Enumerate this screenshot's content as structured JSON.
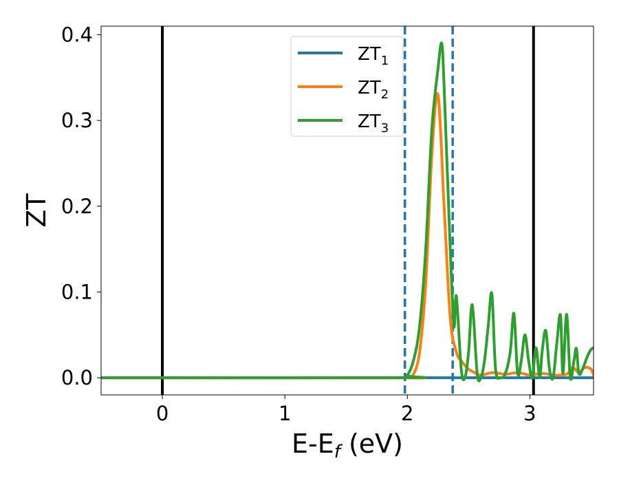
{
  "chart_data": {
    "type": "line",
    "xlabel": "E-E",
    "xlabel_sub": "f",
    "xlabel_unit": "(eV)",
    "ylabel": "ZT",
    "xlim": [
      -0.5,
      3.52
    ],
    "ylim": [
      -0.02,
      0.41
    ],
    "x_ticks": [
      0,
      1,
      2,
      3
    ],
    "x_tick_labels": [
      "0",
      "1",
      "2",
      "3"
    ],
    "y_ticks": [
      0.0,
      0.1,
      0.2,
      0.3,
      0.4
    ],
    "y_tick_labels": [
      "0.0",
      "0.1",
      "0.2",
      "0.3",
      "0.4"
    ],
    "grid": false,
    "legend_position": "top-center",
    "vlines": [
      {
        "x": 0.0,
        "style": "solid",
        "color": "#000000"
      },
      {
        "x": 1.98,
        "style": "dashed",
        "color": "#1f77b4"
      },
      {
        "x": 2.37,
        "style": "dashed",
        "color": "#1f77b4"
      },
      {
        "x": 3.03,
        "style": "solid",
        "color": "#000000"
      }
    ],
    "series": [
      {
        "name": "ZT",
        "sub": "1",
        "color": "#1f77b4",
        "x": [
          -0.5,
          3.52
        ],
        "y": [
          0.0,
          0.0
        ]
      },
      {
        "name": "ZT",
        "sub": "2",
        "color": "#ff7f0e",
        "x": [
          -0.5,
          1.95,
          2.0,
          2.05,
          2.1,
          2.15,
          2.2,
          2.25,
          2.3,
          2.35,
          2.4,
          2.45,
          2.5,
          2.55,
          2.6,
          2.7,
          2.8,
          2.9,
          3.0,
          3.1,
          3.2,
          3.3,
          3.35,
          3.4,
          3.45,
          3.5,
          3.52
        ],
        "y": [
          0.0,
          0.0,
          0.0,
          0.004,
          0.03,
          0.11,
          0.26,
          0.33,
          0.2,
          0.07,
          0.03,
          0.018,
          0.01,
          0.006,
          0.003,
          0.006,
          0.004,
          0.006,
          0.003,
          0.005,
          0.003,
          0.004,
          0.012,
          0.006,
          0.012,
          0.01,
          0.003
        ]
      },
      {
        "name": "ZT",
        "sub": "3",
        "color": "#2ca02c",
        "x": [
          -0.5,
          1.95,
          2.0,
          2.05,
          2.1,
          2.15,
          2.2,
          2.25,
          2.28,
          2.3,
          2.35,
          2.38,
          2.4,
          2.44,
          2.47,
          2.5,
          2.53,
          2.57,
          2.6,
          2.63,
          2.66,
          2.69,
          2.72,
          2.76,
          2.8,
          2.84,
          2.87,
          2.9,
          2.93,
          2.96,
          2.99,
          3.02,
          3.05,
          3.08,
          3.1,
          3.13,
          3.16,
          3.19,
          3.22,
          3.25,
          3.27,
          3.3,
          3.33,
          3.36,
          3.38,
          3.4,
          3.43,
          3.47,
          3.5,
          3.52
        ],
        "y": [
          0.0,
          0.0,
          0.003,
          0.02,
          0.06,
          0.15,
          0.29,
          0.36,
          0.39,
          0.34,
          0.15,
          0.06,
          0.095,
          0.01,
          0.0,
          0.03,
          0.085,
          0.005,
          0.0,
          0.02,
          0.06,
          0.098,
          0.01,
          0.0,
          0.005,
          0.03,
          0.075,
          0.005,
          0.02,
          0.05,
          0.02,
          0.0,
          0.035,
          0.0,
          0.03,
          0.055,
          0.01,
          0.0,
          0.04,
          0.073,
          0.005,
          0.074,
          0.0,
          0.02,
          0.034,
          0.005,
          0.01,
          0.025,
          0.033,
          0.035
        ]
      }
    ]
  }
}
